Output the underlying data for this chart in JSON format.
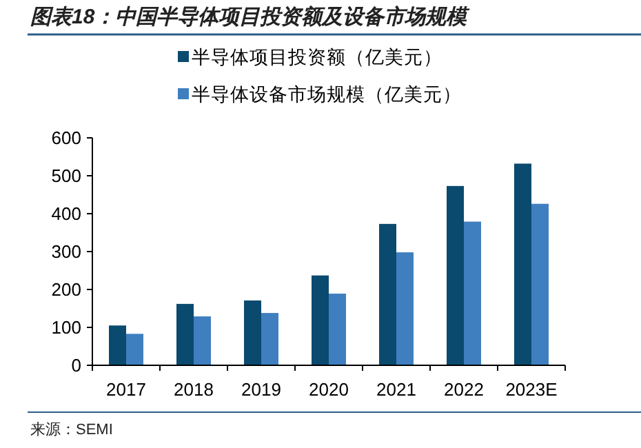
{
  "chart_data": {
    "type": "bar",
    "title": "图表18：中国半导体项目投资额及设备市场规模",
    "categories": [
      "2017",
      "2018",
      "2019",
      "2020",
      "2021",
      "2022",
      "2023E"
    ],
    "series": [
      {
        "name": "半导体项目投资额（亿美元）",
        "color": "#0b4a6f",
        "values": [
          105,
          162,
          171,
          237,
          373,
          473,
          532
        ]
      },
      {
        "name": "半导体设备市场规模（亿美元）",
        "color": "#3f7fbf",
        "values": [
          83,
          129,
          138,
          189,
          298,
          379,
          426
        ]
      }
    ],
    "ylim": [
      0,
      600
    ],
    "yticks": [
      0,
      100,
      200,
      300,
      400,
      500,
      600
    ],
    "grid": false,
    "legend": "top",
    "annotations": [
      "来源：SEMI"
    ]
  }
}
